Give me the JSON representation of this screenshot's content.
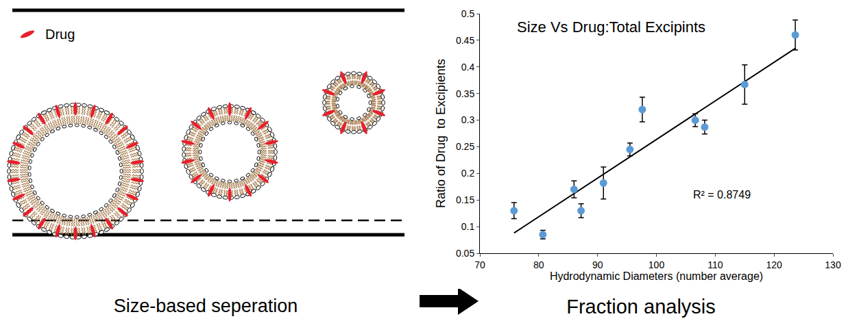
{
  "diagram": {
    "legend": {
      "label": "Drug"
    },
    "caption_left": "Size-based seperation",
    "caption_right": "Fraction analysis"
  },
  "chart_data": {
    "type": "scatter",
    "title": "Size Vs Drug:Total Excipints",
    "x_label": "Hydrodynamic Diameters (number average)",
    "y_label": "Ratio of Drug  to Excipients",
    "x": [
      75.8,
      80.7,
      86.0,
      87.2,
      91.0,
      95.5,
      97.6,
      106.6,
      108.2,
      115.0,
      123.6
    ],
    "values": [
      0.13,
      0.085,
      0.17,
      0.13,
      0.182,
      0.245,
      0.32,
      0.3,
      0.287,
      0.367,
      0.46
    ],
    "errors": [
      0.015,
      0.008,
      0.016,
      0.013,
      0.03,
      0.012,
      0.023,
      0.012,
      0.013,
      0.037,
      0.028
    ],
    "color": "#5b9bd5",
    "marker": "circle",
    "trendline": {
      "x": [
        75.8,
        123.6
      ],
      "y": [
        0.088,
        0.435
      ],
      "color": "#000000"
    },
    "annotations": [
      "R² = 0.8749"
    ],
    "xlim": [
      70,
      130
    ],
    "xticks": [
      70,
      80,
      90,
      100,
      110,
      120,
      130
    ],
    "ylim": [
      0.05,
      0.5
    ],
    "yticks": [
      0.05,
      0.1,
      0.15,
      0.2,
      0.25,
      0.3,
      0.35,
      0.4,
      0.45,
      0.5
    ],
    "grid": false
  }
}
